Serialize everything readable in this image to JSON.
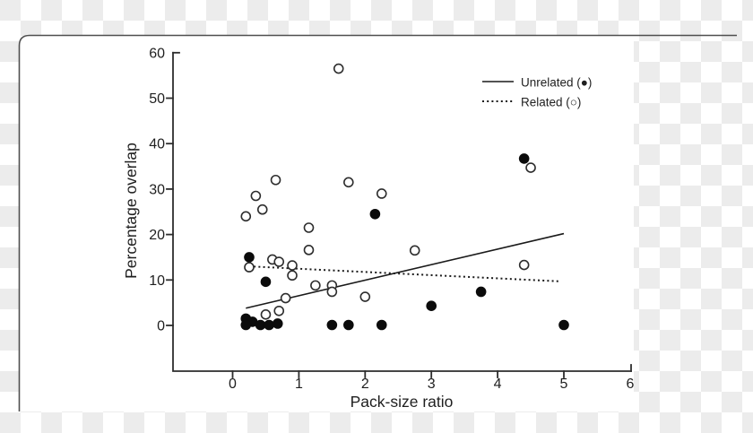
{
  "figure": {
    "background": "transparency-checkerboard",
    "checker_color": "#ececec",
    "card_border_color": "#4f4f4f",
    "plot_background": "#ffffff",
    "axis_color": "#2d2d2d",
    "marker_color": "#0b0b0b"
  },
  "chart_data": {
    "type": "scatter",
    "title": "",
    "xlabel": "Pack-size ratio",
    "ylabel": "Percentage overlap",
    "xlim": [
      -0.9,
      6.02
    ],
    "ylim": [
      -10.1,
      60.6
    ],
    "x_ticks": [
      0,
      1,
      2,
      3,
      4,
      5,
      6
    ],
    "y_ticks": [
      0,
      10,
      20,
      30,
      40,
      50,
      60
    ],
    "grid": false,
    "legend": {
      "position": "top-right",
      "entries": [
        {
          "label": "Unrelated (●)",
          "line": "solid",
          "marker": "filled-circle"
        },
        {
          "label": "Related (○)",
          "line": "dotted",
          "marker": "open-circle"
        }
      ]
    },
    "series": [
      {
        "name": "Unrelated",
        "marker": "filled-circle",
        "points": [
          [
            0.2,
            1.5
          ],
          [
            0.3,
            0.8
          ],
          [
            0.2,
            0.1
          ],
          [
            0.42,
            0.1
          ],
          [
            0.55,
            0.1
          ],
          [
            0.68,
            0.4
          ],
          [
            1.5,
            0.1
          ],
          [
            1.75,
            0.1
          ],
          [
            2.25,
            0.1
          ],
          [
            5.0,
            0.1
          ],
          [
            0.25,
            15.0
          ],
          [
            0.5,
            9.6
          ],
          [
            2.15,
            24.5
          ],
          [
            3.0,
            4.3
          ],
          [
            3.75,
            7.4
          ],
          [
            4.4,
            36.7
          ]
        ],
        "trend_line": {
          "style": "solid",
          "from": [
            0.2,
            3.8
          ],
          "to": [
            5.0,
            20.2
          ]
        }
      },
      {
        "name": "Related",
        "marker": "open-circle",
        "points": [
          [
            1.6,
            56.5
          ],
          [
            0.65,
            32.0
          ],
          [
            1.75,
            31.5
          ],
          [
            2.25,
            29.0
          ],
          [
            0.35,
            28.5
          ],
          [
            0.45,
            25.5
          ],
          [
            0.2,
            24.0
          ],
          [
            1.15,
            21.5
          ],
          [
            1.15,
            16.6
          ],
          [
            2.75,
            16.5
          ],
          [
            4.5,
            34.7
          ],
          [
            4.4,
            13.3
          ],
          [
            0.25,
            12.8
          ],
          [
            0.6,
            14.5
          ],
          [
            0.7,
            14.0
          ],
          [
            0.9,
            13.2
          ],
          [
            0.9,
            11.0
          ],
          [
            1.25,
            8.8
          ],
          [
            1.5,
            8.8
          ],
          [
            1.5,
            7.4
          ],
          [
            2.0,
            6.3
          ],
          [
            0.8,
            6.0
          ],
          [
            0.5,
            2.4
          ],
          [
            0.7,
            3.2
          ]
        ],
        "trend_line": {
          "style": "dotted",
          "from": [
            0.25,
            13.0
          ],
          "to": [
            4.95,
            9.7
          ]
        }
      }
    ]
  }
}
